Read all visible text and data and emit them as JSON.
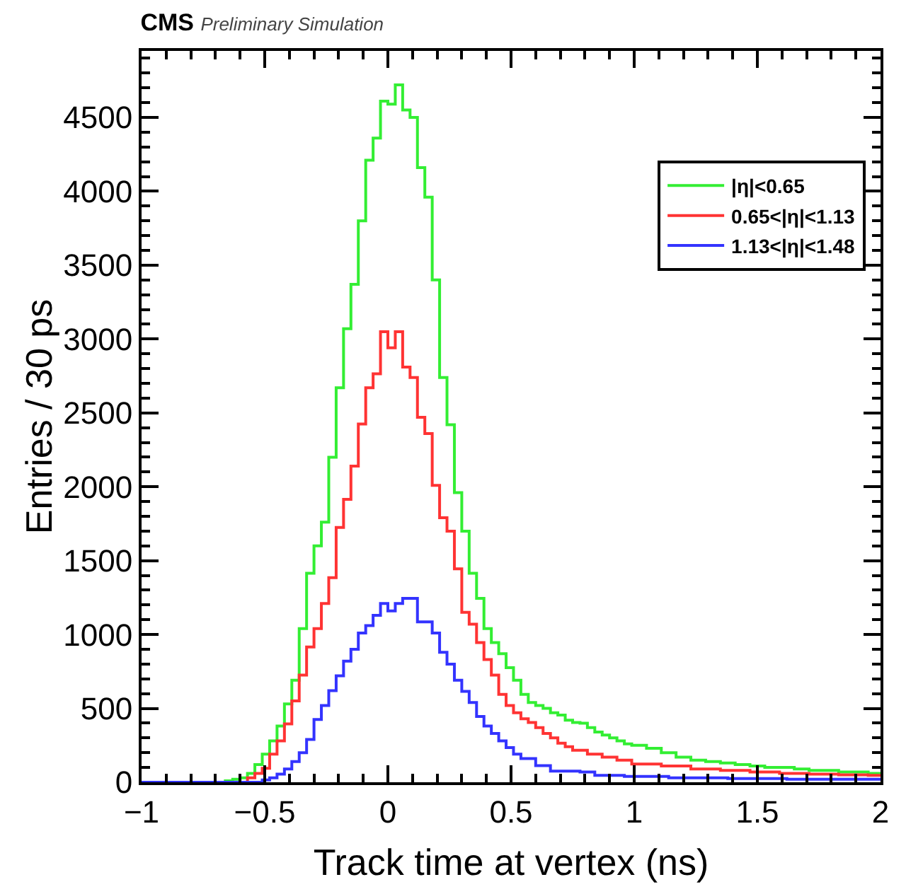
{
  "chart_data": {
    "type": "step",
    "title": "CMS",
    "subtitle": "Preliminary Simulation",
    "xlabel": "Track time at vertex (ns)",
    "ylabel": "Entries / 30 ps",
    "xlim": [
      -1,
      2
    ],
    "xticks": [
      -1,
      -0.5,
      0,
      0.5,
      1,
      1.5,
      2
    ],
    "ylim": [
      0,
      4950
    ],
    "yticks": [
      0,
      500,
      1000,
      1500,
      2000,
      2500,
      3000,
      3500,
      4000,
      4500
    ],
    "legend": "top right",
    "line_style": "solid",
    "marker": "none",
    "series": [
      {
        "name": "|η|<0.65",
        "color": "#33ee33",
        "x": [
          -1,
          -0.66,
          -0.63,
          -0.6,
          -0.57,
          -0.54,
          -0.51,
          -0.48,
          -0.45,
          -0.42,
          -0.39,
          -0.36,
          -0.33,
          -0.3,
          -0.27,
          -0.24,
          -0.21,
          -0.18,
          -0.15,
          -0.12,
          -0.09,
          -0.06,
          -0.03,
          0.0,
          0.03,
          0.06,
          0.09,
          0.12,
          0.15,
          0.18,
          0.21,
          0.24,
          0.27,
          0.3,
          0.33,
          0.36,
          0.39,
          0.42,
          0.45,
          0.48,
          0.51,
          0.54,
          0.57,
          0.6,
          0.63,
          0.66,
          0.69,
          0.72,
          0.75,
          0.78,
          0.81,
          0.84,
          0.87,
          0.9,
          0.93,
          0.96,
          0.99,
          1.05,
          1.11,
          1.17,
          1.23,
          1.29,
          1.35,
          1.41,
          1.47,
          1.53,
          1.59,
          1.65,
          1.71,
          1.77,
          1.83,
          1.89,
          1.95,
          2
        ],
        "values": [
          0,
          10,
          20,
          30,
          60,
          120,
          190,
          280,
          380,
          530,
          690,
          1040,
          1415,
          1600,
          1760,
          2200,
          2670,
          3070,
          3370,
          3800,
          4210,
          4360,
          4610,
          4590,
          4720,
          4550,
          4500,
          4160,
          3960,
          3400,
          2740,
          2420,
          1960,
          1700,
          1415,
          1245,
          1040,
          945,
          870,
          775,
          690,
          595,
          540,
          520,
          500,
          470,
          455,
          420,
          405,
          400,
          370,
          340,
          320,
          300,
          280,
          260,
          250,
          230,
          200,
          170,
          150,
          140,
          130,
          120,
          110,
          100,
          100,
          90,
          80,
          80,
          70,
          70,
          60,
          60
        ]
      },
      {
        "name": "0.65<|η|<1.13",
        "color": "#ff3333",
        "x": [
          -1,
          -0.57,
          -0.54,
          -0.51,
          -0.48,
          -0.45,
          -0.42,
          -0.39,
          -0.36,
          -0.33,
          -0.3,
          -0.27,
          -0.24,
          -0.21,
          -0.18,
          -0.15,
          -0.12,
          -0.09,
          -0.06,
          -0.03,
          0.0,
          0.03,
          0.06,
          0.09,
          0.12,
          0.15,
          0.18,
          0.21,
          0.24,
          0.27,
          0.3,
          0.33,
          0.36,
          0.39,
          0.42,
          0.45,
          0.48,
          0.51,
          0.54,
          0.57,
          0.6,
          0.63,
          0.66,
          0.69,
          0.72,
          0.75,
          0.81,
          0.87,
          0.93,
          0.99,
          1.11,
          1.23,
          1.35,
          1.47,
          1.59,
          1.71,
          1.83,
          1.95,
          2
        ],
        "values": [
          0,
          30,
          60,
          95,
          190,
          280,
          395,
          550,
          725,
          915,
          1040,
          1210,
          1385,
          1725,
          1915,
          2140,
          2425,
          2670,
          2765,
          3050,
          2940,
          3050,
          2810,
          2740,
          2470,
          2360,
          2010,
          1790,
          1700,
          1445,
          1150,
          1070,
          945,
          830,
          725,
          595,
          520,
          470,
          430,
          405,
          370,
          330,
          300,
          265,
          240,
          217,
          190,
          170,
          150,
          123,
          110,
          90,
          80,
          70,
          60,
          55,
          50,
          47,
          47
        ]
      },
      {
        "name": "1.13<|η|<1.48",
        "color": "#3333ff",
        "x": [
          -1,
          -0.51,
          -0.48,
          -0.45,
          -0.42,
          -0.39,
          -0.36,
          -0.33,
          -0.3,
          -0.27,
          -0.24,
          -0.21,
          -0.18,
          -0.15,
          -0.12,
          -0.09,
          -0.06,
          -0.03,
          0.0,
          0.03,
          0.06,
          0.09,
          0.12,
          0.15,
          0.18,
          0.21,
          0.24,
          0.27,
          0.3,
          0.33,
          0.36,
          0.39,
          0.42,
          0.45,
          0.48,
          0.51,
          0.54,
          0.57,
          0.6,
          0.63,
          0.66,
          0.72,
          0.78,
          0.84,
          0.96,
          1.14,
          1.38,
          1.62,
          1.86,
          2
        ],
        "values": [
          0,
          15,
          30,
          55,
          90,
          140,
          200,
          290,
          425,
          520,
          620,
          720,
          820,
          900,
          1010,
          1060,
          1130,
          1210,
          1160,
          1210,
          1245,
          1245,
          1085,
          1085,
          1010,
          880,
          800,
          690,
          615,
          540,
          445,
          380,
          330,
          280,
          235,
          190,
          160,
          160,
          113,
          113,
          75,
          75,
          70,
          47,
          40,
          30,
          25,
          20,
          20,
          20
        ]
      }
    ]
  }
}
